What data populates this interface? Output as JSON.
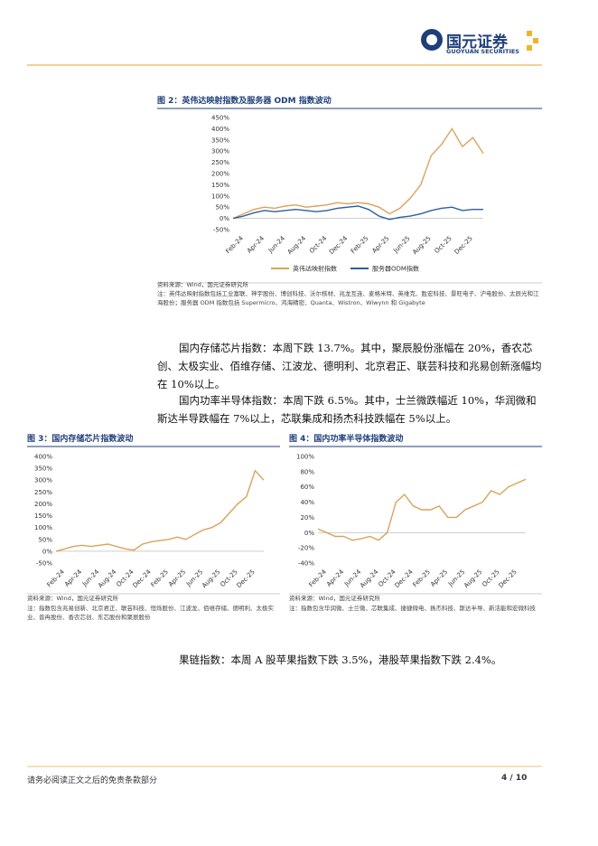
{
  "header": {
    "logo_cn": "国元证券",
    "logo_en": "GUOYUAN SECURITIES"
  },
  "paragraphs": [
    "国内存储芯片指数：本周下跌 13.7%。其中，聚辰股份涨幅在 20%，香农芯创、太极实业、佰维存储、江波龙、德明利、北京君正、联芸科技和兆易创新涨幅均在 10%以上。",
    "国内功率半导体指数：本周下跌 6.5%。其中，士兰微跌幅近 10%，华润微和斯达半导跌幅在 7%以上，芯联集成和扬杰科技跌幅在 5%以上。",
    "果链指数：本周 A 股苹果指数下跌 3.5%，港股苹果指数下跌 2.4%。"
  ],
  "footer": {
    "disclaimer": "请务必阅读正文之后的免责条款部分",
    "page": "4 / 10"
  },
  "chart_data": [
    {
      "type": "line",
      "title": "图 2：英伟达映射指数及服务器 ODM 指数波动",
      "source": "资料来源：Wind，国元证券研究所",
      "note": "注：英伟达映射指数包括工业富联、神宇股份、博创科技、沃尔核材、兆龙互连、麦格米特、英维克、胜宏科技、景旺电子、沪电股份、太辰光和江海股份；服务器 ODM 指数包括 Supermicro、鸿海精密、Quanta、Wistron、Wiwynn 和 Gigabyte",
      "categories": [
        null,
        "Feb-24",
        null,
        "Apr-24",
        null,
        "Jun-24",
        null,
        "Aug-24",
        null,
        "Oct-24",
        null,
        "Dec-24",
        null,
        "Feb-25",
        null,
        "Apr-25",
        null,
        "Jun-25",
        null,
        "Aug-25",
        null,
        "Oct-25",
        null,
        "Dec-25",
        null
      ],
      "series": [
        {
          "name": "英伟达映射指数",
          "color": "#d9a35b",
          "values": [
            0,
            20,
            40,
            50,
            45,
            55,
            60,
            50,
            55,
            60,
            70,
            65,
            70,
            65,
            50,
            20,
            45,
            90,
            150,
            280,
            330,
            400,
            320,
            360,
            290
          ]
        },
        {
          "name": "服务器ODM指数",
          "color": "#2e5f9e",
          "values": [
            0,
            10,
            25,
            35,
            30,
            35,
            40,
            35,
            30,
            35,
            45,
            50,
            55,
            40,
            10,
            -5,
            5,
            10,
            20,
            35,
            45,
            50,
            35,
            40,
            40
          ]
        }
      ],
      "ylim": [
        -50,
        450
      ],
      "yticks": [
        {
          "value": -50,
          "label": "-50%"
        },
        {
          "value": 0,
          "label": "0%"
        },
        {
          "value": 50,
          "label": "50%"
        },
        {
          "value": 100,
          "label": "100%"
        },
        {
          "value": 150,
          "label": "150%"
        },
        {
          "value": 200,
          "label": "200%"
        },
        {
          "value": 250,
          "label": "250%"
        },
        {
          "value": 300,
          "label": "300%"
        },
        {
          "value": 350,
          "label": "350%"
        },
        {
          "value": 400,
          "label": "400%"
        },
        {
          "value": 450,
          "label": "450%"
        }
      ],
      "grid": false,
      "legend": "bottom"
    },
    {
      "type": "line",
      "title": "图 3：国内存储芯片指数波动",
      "source": "资料来源：Wind，国元证券研究所",
      "note": "注：指数包含兆易创新、北京君正、联芸科技、恒烁股份、江波龙、佰维存储、德明利、太极实业、普冉股份、香农芯创、东芯股份和聚辰股份",
      "categories": [
        null,
        "Feb-24",
        null,
        "Apr-24",
        null,
        "Jun-24",
        null,
        "Aug-24",
        null,
        "Oct-24",
        null,
        "Dec-24",
        null,
        "Feb-25",
        null,
        "Apr-25",
        null,
        "Jun-25",
        null,
        "Aug-25",
        null,
        "Oct-25",
        null,
        "Dec-25",
        null
      ],
      "series": [
        {
          "name": "国内存储芯片指数",
          "color": "#d9a35b",
          "values": [
            0,
            10,
            20,
            25,
            20,
            25,
            30,
            20,
            10,
            5,
            30,
            40,
            45,
            50,
            60,
            50,
            70,
            90,
            100,
            120,
            160,
            200,
            230,
            340,
            300
          ]
        }
      ],
      "ylim": [
        -50,
        400
      ],
      "yticks": [
        {
          "value": -50,
          "label": "-50%"
        },
        {
          "value": 0,
          "label": "0%"
        },
        {
          "value": 50,
          "label": "50%"
        },
        {
          "value": 100,
          "label": "100%"
        },
        {
          "value": 150,
          "label": "150%"
        },
        {
          "value": 200,
          "label": "200%"
        },
        {
          "value": 250,
          "label": "250%"
        },
        {
          "value": 300,
          "label": "300%"
        },
        {
          "value": 350,
          "label": "350%"
        },
        {
          "value": 400,
          "label": "400%"
        }
      ],
      "grid": false
    },
    {
      "type": "line",
      "title": "图 4：国内功率半导体指数波动",
      "source": "资料来源：Wind，国元证券研究所",
      "note": "注：指数包含华润微、士兰微、芯联集成、捷捷微电、扬杰科技、斯达半导、新洁能和宏微科技",
      "categories": [
        null,
        "Feb-24",
        null,
        "Apr-24",
        null,
        "Jun-24",
        null,
        "Aug-24",
        null,
        "Oct-24",
        null,
        "Dec-24",
        null,
        "Feb-25",
        null,
        "Apr-25",
        null,
        "Jun-25",
        null,
        "Aug-25",
        null,
        "Oct-25",
        null,
        "Dec-25",
        null
      ],
      "series": [
        {
          "name": "国内功率半导体指数",
          "color": "#d9a35b",
          "values": [
            5,
            0,
            -5,
            -5,
            -10,
            -8,
            -5,
            -10,
            0,
            40,
            50,
            35,
            30,
            30,
            35,
            20,
            20,
            30,
            35,
            40,
            55,
            50,
            60,
            65,
            70
          ]
        }
      ],
      "ylim": [
        -40,
        100
      ],
      "yticks": [
        {
          "value": -40,
          "label": "-40%"
        },
        {
          "value": -20,
          "label": "-20%"
        },
        {
          "value": 0,
          "label": "0%"
        },
        {
          "value": 20,
          "label": "20%"
        },
        {
          "value": 40,
          "label": "40%"
        },
        {
          "value": 60,
          "label": "60%"
        },
        {
          "value": 80,
          "label": "80%"
        },
        {
          "value": 100,
          "label": "100%"
        }
      ],
      "grid": false
    }
  ]
}
